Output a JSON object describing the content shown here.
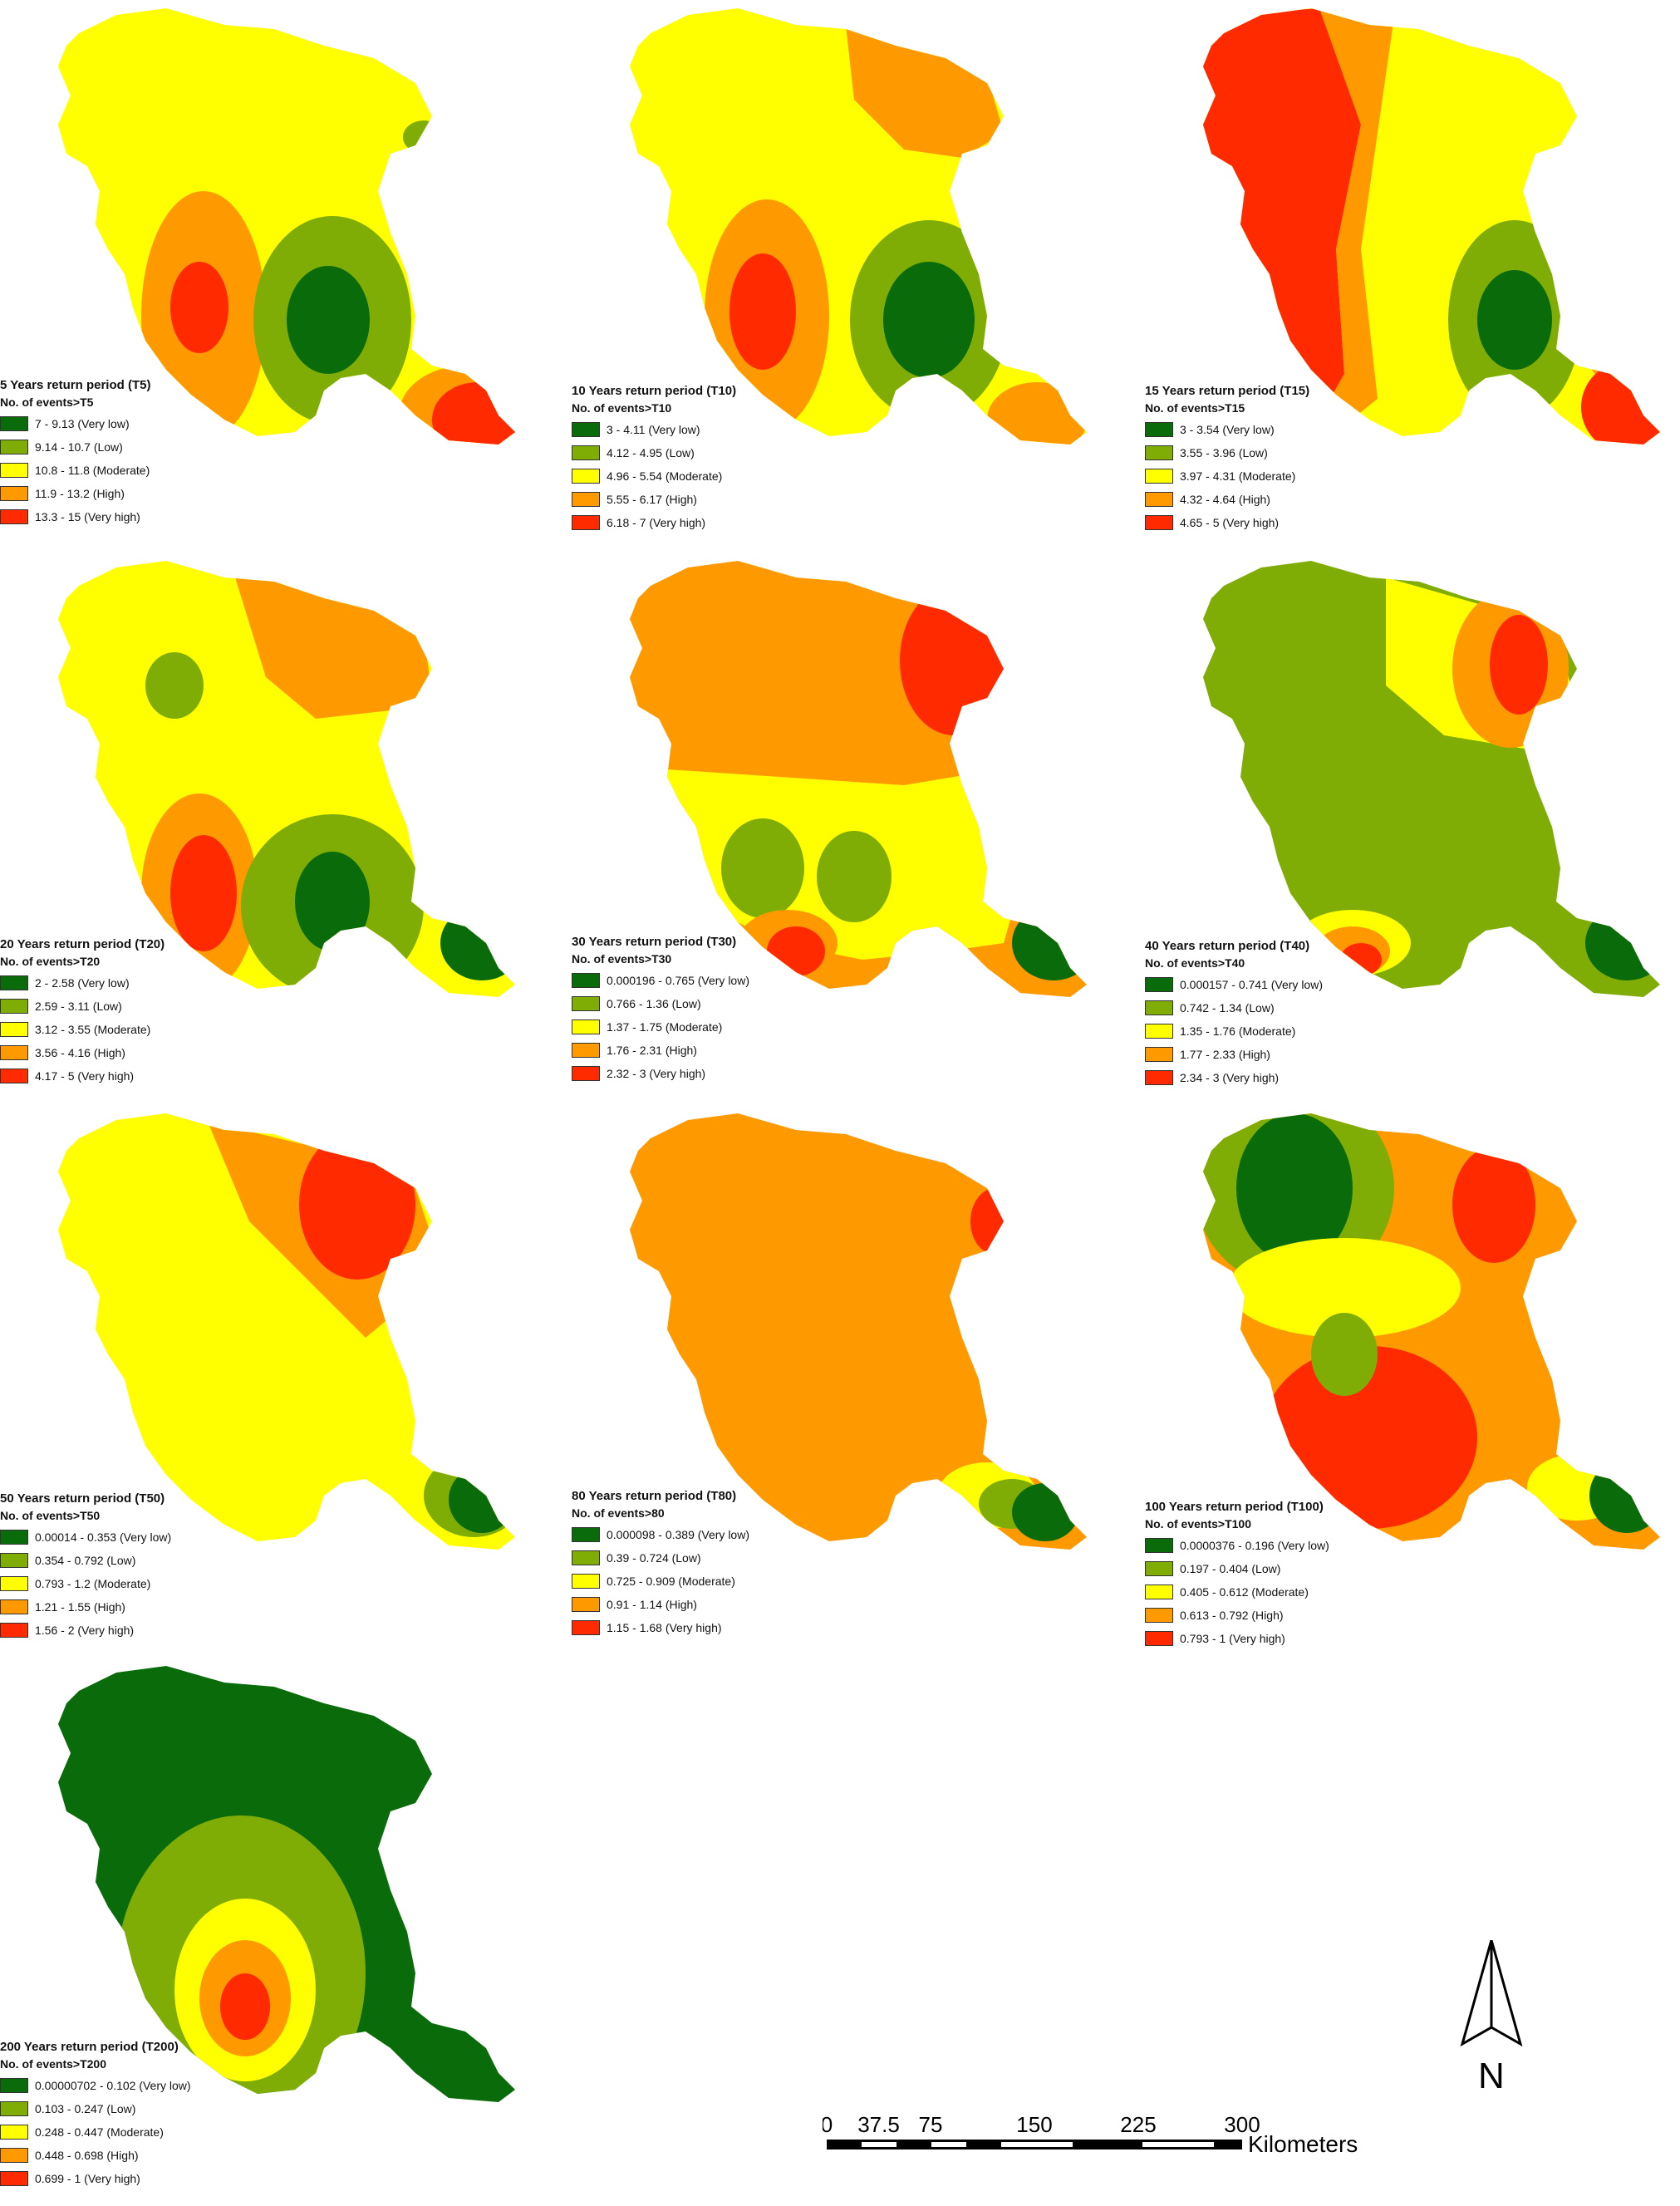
{
  "colors": {
    "very_low": "#0a6b0a",
    "low": "#7fad06",
    "moderate": "#ffff00",
    "high": "#ff9900",
    "very_high": "#ff2a00"
  },
  "panels": [
    {
      "title": "5 Years return period (T5)",
      "subtitle": "No. of events>T5",
      "classes": [
        "7 - 9.13 (Very low)",
        "9.14 - 10.7 (Low)",
        "10.8 - 11.8 (Moderate)",
        "11.9 - 13.2 (High)",
        "13.3 - 15 (Very high)"
      ]
    },
    {
      "title": "10 Years return period (T10)",
      "subtitle": "No. of events>T10",
      "classes": [
        "3 - 4.11 (Very low)",
        "4.12 - 4.95 (Low)",
        "4.96 - 5.54 (Moderate)",
        "5.55 - 6.17 (High)",
        "6.18 - 7 (Very high)"
      ]
    },
    {
      "title": "15 Years return period (T15)",
      "subtitle": "No. of events>T15",
      "classes": [
        "3 - 3.54 (Very low)",
        "3.55 - 3.96 (Low)",
        "3.97 - 4.31 (Moderate)",
        "4.32 - 4.64 (High)",
        "4.65 - 5 (Very high)"
      ]
    },
    {
      "title": "20 Years return period (T20)",
      "subtitle": "No. of events>T20",
      "classes": [
        "2 - 2.58 (Very low)",
        "2.59 - 3.11 (Low)",
        "3.12 - 3.55 (Moderate)",
        "3.56 - 4.16 (High)",
        "4.17 - 5 (Very high)"
      ]
    },
    {
      "title": "30 Years return period (T30)",
      "subtitle": "No. of events>T30",
      "classes": [
        "0.000196 - 0.765 (Very low)",
        "0.766 - 1.36 (Low)",
        "1.37 - 1.75 (Moderate)",
        "1.76 - 2.31 (High)",
        "2.32 - 3 (Very high)"
      ]
    },
    {
      "title": "40 Years return period (T40)",
      "subtitle": "No. of events>T40",
      "classes": [
        "0.000157 - 0.741 (Very low)",
        "0.742 - 1.34 (Low)",
        "1.35 - 1.76 (Moderate)",
        "1.77 - 2.33 (High)",
        "2.34 - 3 (Very high)"
      ]
    },
    {
      "title": "50 Years return period (T50)",
      "subtitle": "No. of events>T50",
      "classes": [
        "0.00014 - 0.353 (Very low)",
        "0.354 - 0.792 (Low)",
        "0.793 - 1.2 (Moderate)",
        "1.21 - 1.55 (High)",
        "1.56 - 2 (Very high)"
      ]
    },
    {
      "title": "80 Years return period (T80)",
      "subtitle": "No. of events>80",
      "classes": [
        "0.000098 - 0.389 (Very low)",
        "0.39 - 0.724 (Low)",
        "0.725 - 0.909 (Moderate)",
        "0.91 - 1.14 (High)",
        "1.15 - 1.68 (Very high)"
      ]
    },
    {
      "title": "100 Years return period (T100)",
      "subtitle": "No. of events>T100",
      "classes": [
        "0.0000376 - 0.196 (Very low)",
        "0.197 - 0.404 (Low)",
        "0.405 - 0.612 (Moderate)",
        "0.613 - 0.792 (High)",
        "0.793 - 1 (Very high)"
      ]
    },
    {
      "title": "200 Years return period (T200)",
      "subtitle": "No. of events>T200",
      "classes": [
        "0.00000702 - 0.102 (Very low)",
        "0.103 - 0.247 (Low)",
        "0.248 - 0.447 (Moderate)",
        "0.448 - 0.698 (High)",
        "0.699 - 1 (Very high)"
      ]
    }
  ],
  "scalebar": {
    "ticks": [
      "0",
      "37.5",
      "75",
      "150",
      "225",
      "300"
    ],
    "unit": "Kilometers"
  },
  "north_arrow": {
    "label": "N",
    "icon": "north-arrow-icon"
  }
}
